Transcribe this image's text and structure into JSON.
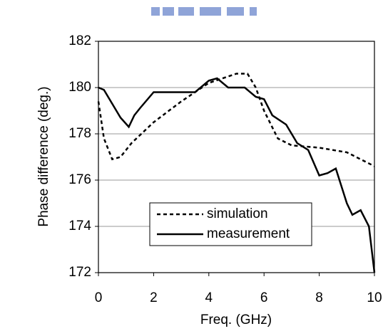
{
  "chart_data": {
    "type": "line",
    "xlabel": "Freq. (GHz)",
    "ylabel": "Phase difference (deg.)",
    "xlim": [
      0,
      10
    ],
    "xticks": [
      0,
      2,
      4,
      6,
      8,
      10
    ],
    "ylim": [
      172,
      182
    ],
    "yticks": [
      172,
      174,
      176,
      178,
      180,
      182
    ],
    "grid": true,
    "legend": "lower center",
    "series": [
      {
        "name": "simulation",
        "color": "#000000",
        "linestyle": "dashed",
        "x": [
          0,
          0.2,
          0.5,
          0.8,
          1.2,
          2,
          3,
          4,
          5,
          5.4,
          5.7,
          6,
          6.5,
          7,
          8,
          9,
          10
        ],
        "values": [
          179.4,
          177.8,
          176.9,
          177.0,
          177.6,
          178.5,
          179.4,
          180.2,
          180.6,
          180.6,
          180.0,
          179.0,
          177.8,
          177.5,
          177.4,
          177.2,
          176.6
        ]
      },
      {
        "name": "measurement",
        "color": "#000000",
        "linestyle": "solid",
        "x": [
          0,
          0.2,
          0.5,
          0.8,
          1.1,
          1.3,
          1.5,
          2,
          3,
          3.5,
          4,
          4.3,
          4.7,
          5.3,
          5.7,
          6,
          6.3,
          6.8,
          7.2,
          7.6,
          8,
          8.3,
          8.6,
          9,
          9.2,
          9.5,
          9.8,
          10
        ],
        "values": [
          180.0,
          179.9,
          179.3,
          178.7,
          178.3,
          178.8,
          179.1,
          179.8,
          179.8,
          179.8,
          180.3,
          180.4,
          180.0,
          180.0,
          179.6,
          179.5,
          178.8,
          178.4,
          177.6,
          177.3,
          176.2,
          176.3,
          176.5,
          175.0,
          174.5,
          174.7,
          174.0,
          172.0
        ]
      }
    ]
  }
}
